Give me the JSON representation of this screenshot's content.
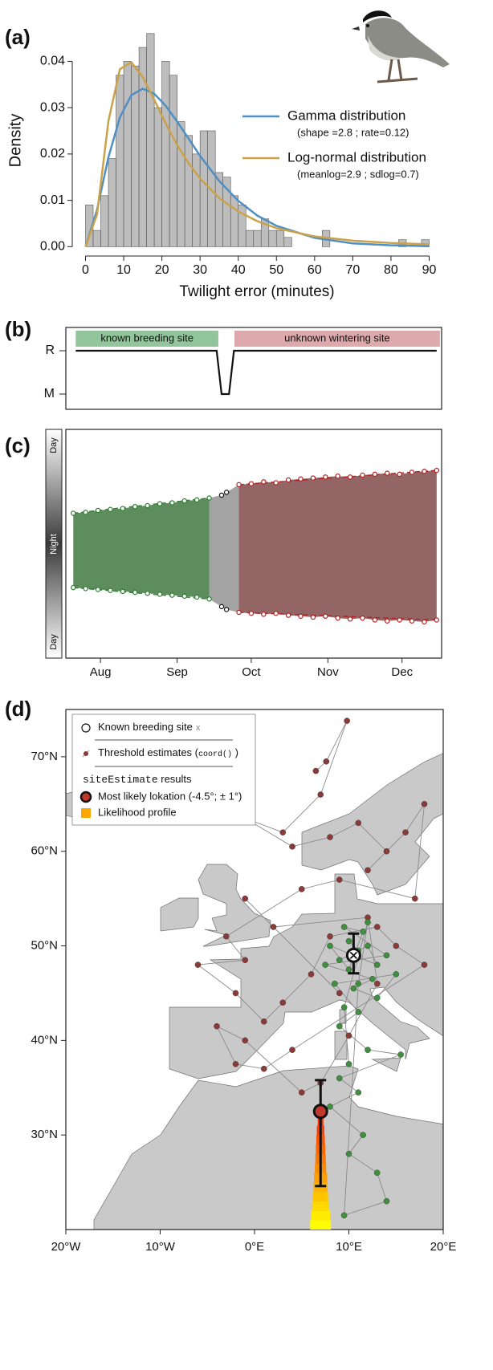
{
  "chart_data": [
    {
      "type": "histogram",
      "label": "(a)",
      "xlabel": "Twilight error (minutes)",
      "ylabel": "Density",
      "bins": [
        0,
        2,
        4,
        6,
        8,
        10,
        12,
        14,
        16,
        18,
        20,
        22,
        24,
        26,
        28,
        30,
        32,
        34,
        36,
        38,
        40,
        42,
        44,
        46,
        48,
        50,
        52,
        54,
        56,
        58,
        60,
        62,
        64,
        66,
        68,
        70,
        72,
        74,
        76,
        78,
        80,
        82,
        84,
        86,
        88,
        90
      ],
      "values": [
        0.009,
        0.0035,
        0.011,
        0.019,
        0.037,
        0.04,
        0.039,
        0.043,
        0.046,
        0.03,
        0.04,
        0.037,
        0.027,
        0.024,
        0.02,
        0.025,
        0.025,
        0.016,
        0.015,
        0.011,
        0.009,
        0.0035,
        0.0035,
        0.006,
        0.0035,
        0.0035,
        0.002,
        0,
        0,
        0,
        0,
        0.0035,
        0,
        0,
        0,
        0,
        0,
        0,
        0,
        0,
        0,
        0.0015,
        0,
        0,
        0.0015
      ],
      "color": "#bdbdbd",
      "xlim": [
        -2,
        92
      ],
      "ylim": [
        -0.0015,
        0.047
      ],
      "xticks": [
        0,
        10,
        20,
        30,
        40,
        50,
        60,
        70,
        80,
        90
      ],
      "yticks": [
        {
          "value": 0,
          "label": "0.00"
        },
        {
          "value": 0.01,
          "label": "0.01"
        },
        {
          "value": 0.02,
          "label": "0.02"
        },
        {
          "value": 0.03,
          "label": "0.03"
        },
        {
          "value": 0.04,
          "label": "0.04"
        }
      ],
      "series": [
        {
          "name": "Gamma distribution",
          "params": "(shape =2.8 ; rate=0.12)",
          "color": "#4f8fc4",
          "x": [
            0,
            3,
            6,
            9,
            12,
            15,
            18,
            21,
            24,
            27,
            30,
            35,
            40,
            45,
            50,
            60,
            70,
            80,
            90
          ],
          "values": [
            0,
            0.0079,
            0.0193,
            0.0279,
            0.0327,
            0.0341,
            0.033,
            0.0304,
            0.027,
            0.0233,
            0.0196,
            0.0142,
            0.0099,
            0.0067,
            0.0045,
            0.0019,
            0.0007,
            0.0003,
            0.0001
          ]
        },
        {
          "name": "Log-normal distribution",
          "params": "(meanlog=2.9 ; sdlog=0.7)",
          "color": "#c9a24a",
          "x": [
            0,
            3,
            6,
            9,
            12,
            15,
            18,
            21,
            24,
            27,
            30,
            35,
            40,
            45,
            50,
            60,
            70,
            80,
            90
          ],
          "values": [
            0,
            0.0069,
            0.0271,
            0.0383,
            0.0398,
            0.0366,
            0.0317,
            0.0266,
            0.0219,
            0.018,
            0.0147,
            0.0105,
            0.0076,
            0.0055,
            0.004,
            0.0022,
            0.0013,
            0.0008,
            0.0005
          ]
        }
      ]
    },
    {
      "type": "step",
      "label": "(b)",
      "xlim": [
        0,
        152
      ],
      "levels": [
        "M",
        "R"
      ],
      "x": [
        4,
        61,
        63,
        66,
        68,
        150
      ],
      "values": [
        "R",
        "R",
        "M",
        "M",
        "R",
        "R"
      ],
      "segments": [
        {
          "label": "known breeding site",
          "color": "#93c59c",
          "start": 4,
          "end": 61.7
        },
        {
          "label": "unknown wintering site",
          "color": "#dda9ad",
          "start": 68.2,
          "end": 151.3
        }
      ]
    },
    {
      "type": "actogram",
      "label": "(c)",
      "gradient_labels": [
        "Day",
        "Night",
        "Day"
      ],
      "xlim": [
        0,
        152
      ],
      "ylim": [
        0,
        24
      ],
      "xticks": [
        {
          "value": 14,
          "label": "Aug"
        },
        {
          "value": 45,
          "label": "Sep"
        },
        {
          "value": 75,
          "label": "Oct"
        },
        {
          "value": 106,
          "label": "Nov"
        },
        {
          "value": 136,
          "label": "Dec"
        }
      ],
      "x": [
        3,
        8,
        13,
        18,
        23,
        28,
        33,
        38,
        43,
        48,
        53,
        58,
        63,
        65,
        70,
        75,
        80,
        85,
        90,
        95,
        100,
        105,
        110,
        115,
        120,
        125,
        130,
        135,
        140,
        145,
        150
      ],
      "evening": [
        8.8,
        8.7,
        8.5,
        8.4,
        8.3,
        8.1,
        8.0,
        7.8,
        7.7,
        7.5,
        7.4,
        7.2,
        6.9,
        6.6,
        5.8,
        5.7,
        5.5,
        5.6,
        5.3,
        5.2,
        5.1,
        5.0,
        4.9,
        5.0,
        4.8,
        4.7,
        4.6,
        4.7,
        4.5,
        4.4,
        4.3
      ],
      "morning": [
        16.6,
        16.7,
        16.8,
        16.9,
        17.0,
        17.1,
        17.2,
        17.3,
        17.4,
        17.5,
        17.6,
        17.8,
        18.6,
        18.9,
        19.2,
        19.3,
        19.4,
        19.3,
        19.5,
        19.6,
        19.7,
        19.6,
        19.8,
        19.9,
        19.8,
        20.0,
        20.1,
        20.0,
        20.1,
        20.2,
        20.0
      ],
      "point_colors": [
        "#2f7d32",
        "#111111",
        "#b22222"
      ],
      "fills": [
        "#5d8d5d",
        "#a3a3a3",
        "#936565"
      ]
    },
    {
      "type": "map",
      "label": "(d)",
      "xlim": [
        -20,
        20
      ],
      "ylim": [
        20,
        75
      ],
      "xticks": [
        {
          "value": -20,
          "label": "20°W"
        },
        {
          "value": -10,
          "label": "10°W"
        },
        {
          "value": 0,
          "label": "0°E"
        },
        {
          "value": 10,
          "label": "10°E"
        },
        {
          "value": 20,
          "label": "20°E"
        }
      ],
      "yticks": [
        {
          "value": 30,
          "label": "30°N"
        },
        {
          "value": 40,
          "label": "40°N"
        },
        {
          "value": 50,
          "label": "50°N"
        },
        {
          "value": 60,
          "label": "60°N"
        },
        {
          "value": 70,
          "label": "70°N"
        }
      ],
      "legend": {
        "breeding": "Known breeding site",
        "breeding_mark": "x",
        "threshold": "Threshold estimates (",
        "threshold_code": "coord()",
        "threshold_end": " )",
        "site_code": "siteEstimate",
        "site_text": " results",
        "likely": "Most likely lokation (-4.5°; ± 1°)",
        "profile": "Likelihood profile"
      },
      "threshold_estimates": [
        {
          "color": "#8b3a3a",
          "lon": [
            6.5,
            7.6,
            9.8,
            7,
            3,
            -1,
            4,
            8,
            11,
            14,
            12,
            16,
            18,
            17,
            9,
            5,
            -3,
            -1,
            -6,
            -2,
            1,
            3,
            6,
            8,
            13,
            15,
            18,
            4,
            1,
            -2,
            -4,
            -1,
            5,
            7,
            10,
            13,
            12,
            2,
            -1,
            9
          ],
          "lat": [
            68.5,
            69.5,
            73.8,
            66,
            62,
            63.5,
            60.5,
            61.5,
            63,
            60,
            58,
            62,
            65,
            55,
            57,
            56,
            51,
            48.5,
            48,
            45,
            42,
            44,
            47,
            51,
            52,
            50,
            48,
            39,
            37,
            37.5,
            41.5,
            40,
            34.5,
            35.5,
            40.5,
            46,
            53,
            52,
            55,
            45
          ]
        },
        {
          "color": "#3f8f3f",
          "lon": [
            10,
            11,
            9,
            12,
            13,
            8,
            10,
            11.5,
            9.5,
            14,
            7.5,
            12.5,
            10.5,
            13,
            15,
            8.5,
            11,
            9,
            12,
            15.5,
            9,
            11,
            8,
            11.5,
            10,
            13,
            14,
            9.5,
            11,
            12,
            9.5,
            10
          ],
          "lat": [
            50.5,
            49.5,
            48.5,
            50,
            48,
            50,
            47.5,
            51.5,
            52,
            49,
            48,
            46.5,
            45.5,
            44.5,
            47,
            46,
            43,
            41.5,
            39,
            38.5,
            36,
            34.5,
            33,
            30,
            28,
            26,
            23,
            21.5,
            46,
            52.5,
            43.5,
            37.5
          ]
        }
      ],
      "breeding_site": {
        "lon": 10.5,
        "lat": 49,
        "lat_low": 47.1,
        "lat_high": 51.3
      },
      "estimate": {
        "lon": 7,
        "lat": 32.5,
        "lat_low": 24.6,
        "lat_high": 35.8,
        "color": "#c0392b"
      },
      "profile": {
        "lon": 7,
        "lat": [
          20,
          21,
          22,
          23,
          24,
          25,
          26,
          27,
          28,
          29,
          30,
          31,
          32
        ],
        "width": [
          2.2,
          2.0,
          1.8,
          1.6,
          1.5,
          1.4,
          1.2,
          1.1,
          1.0,
          0.9,
          0.8,
          0.6,
          0.4
        ],
        "colors": [
          "#ffff00",
          "#ff1a00"
        ]
      }
    }
  ]
}
